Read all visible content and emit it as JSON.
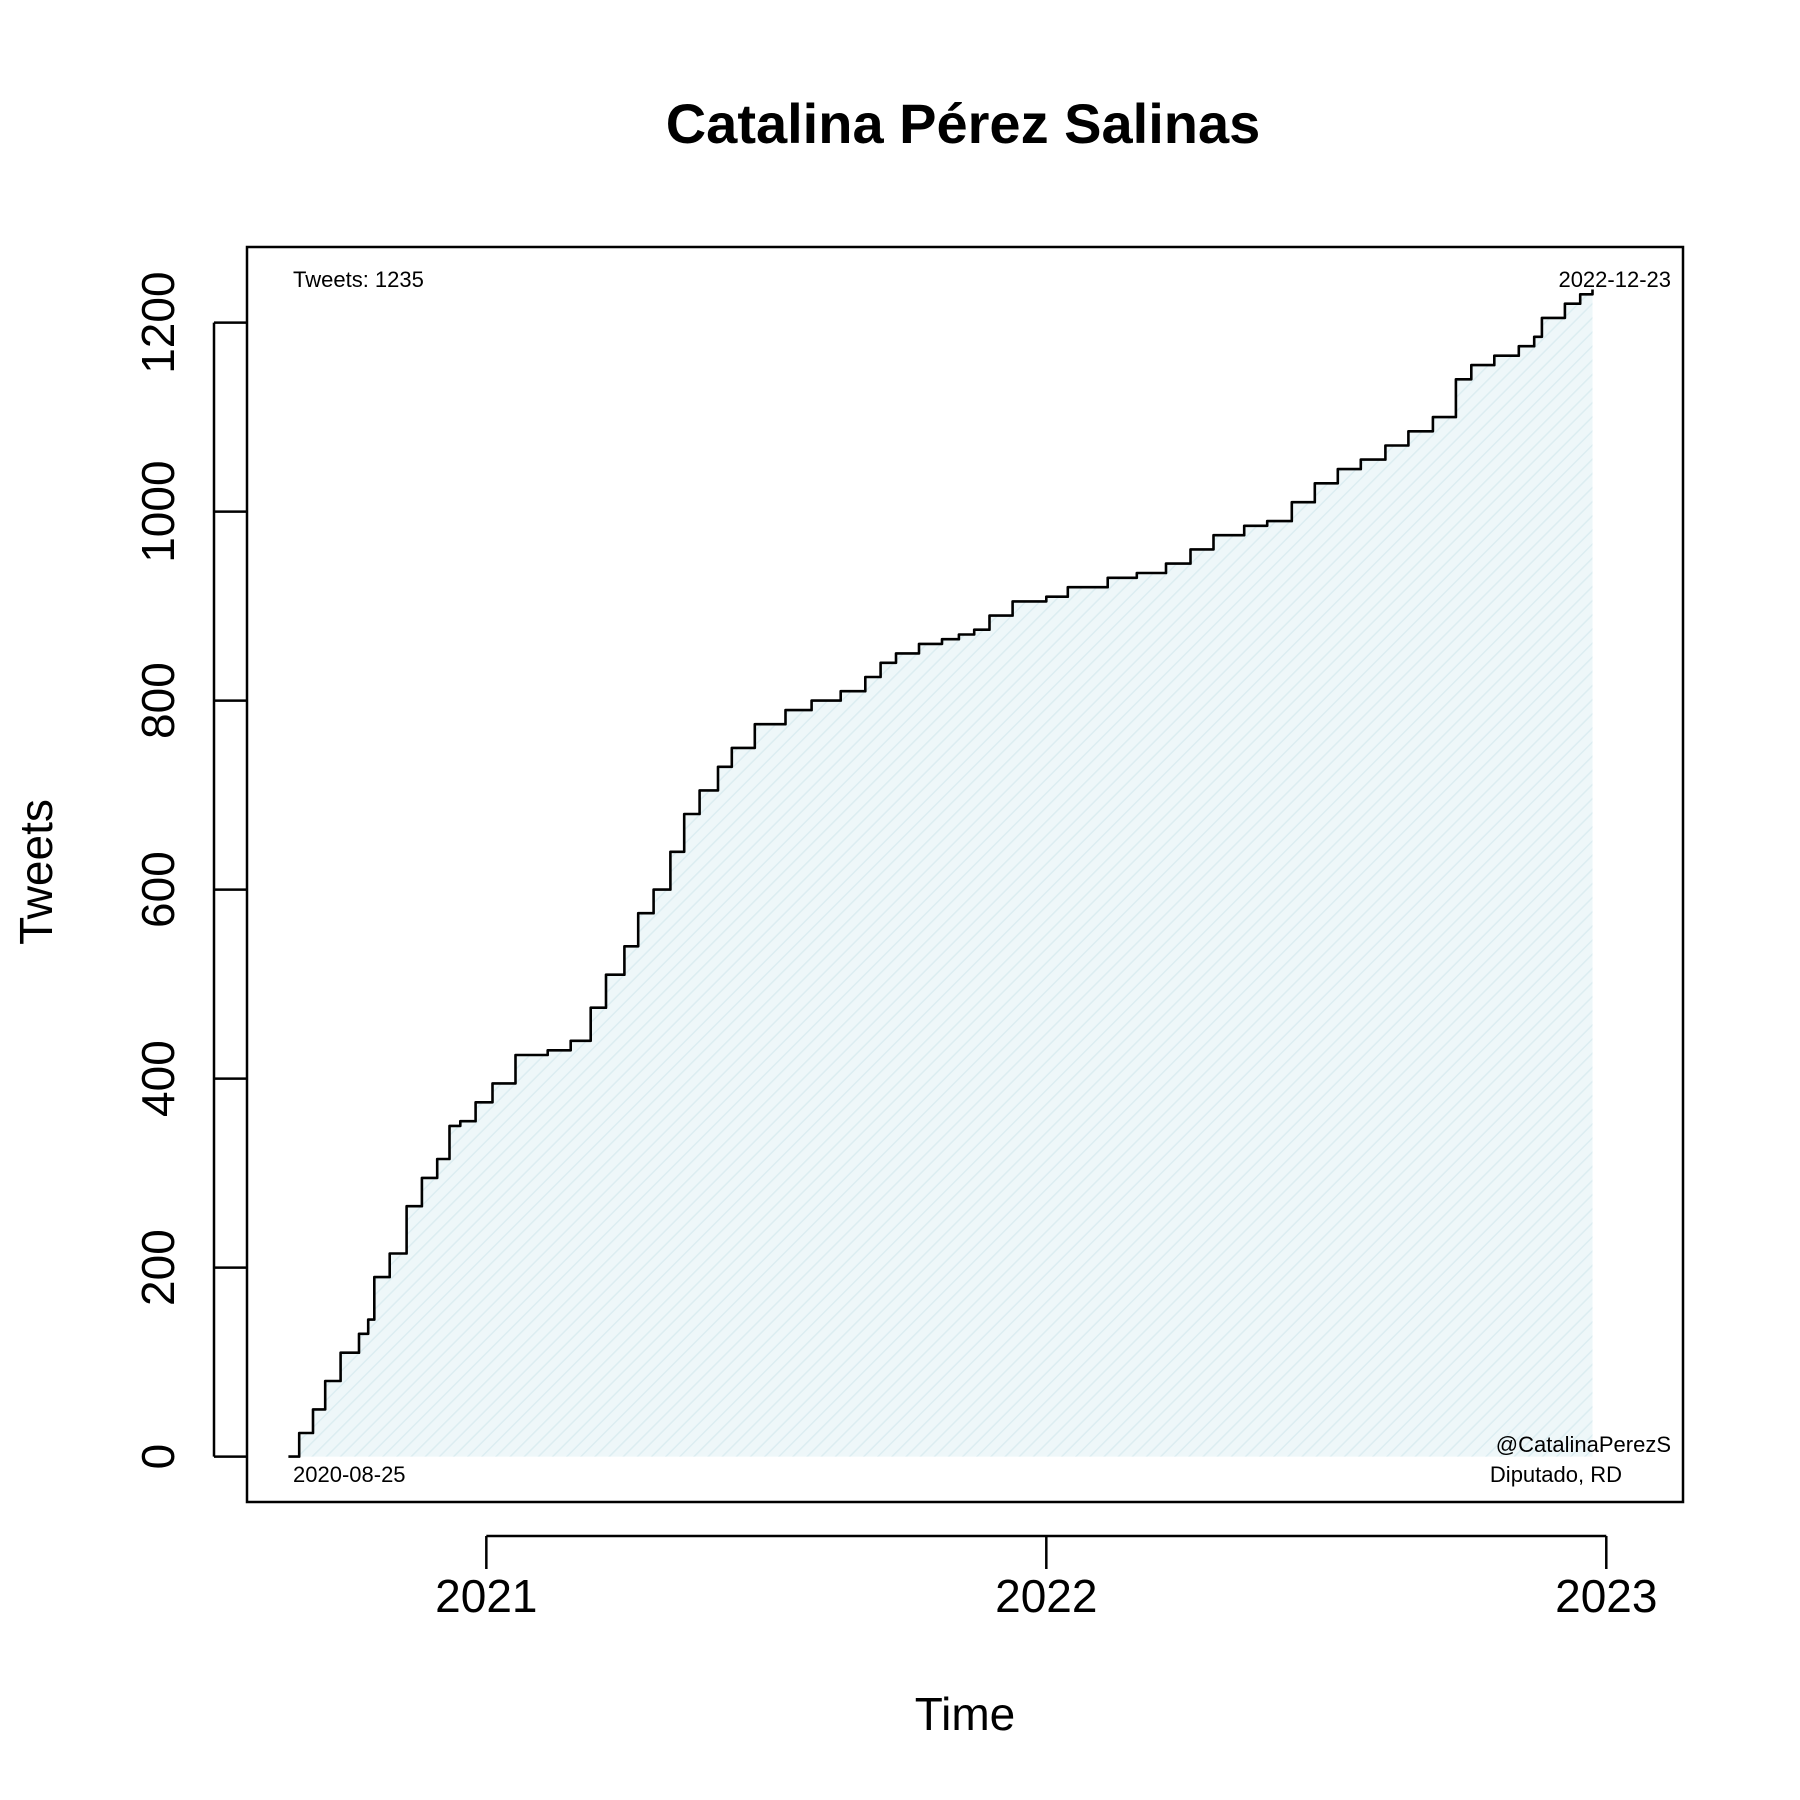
{
  "chart_data": {
    "type": "area",
    "title": "Catalina Pérez Salinas",
    "xlabel": "Time",
    "ylabel": "Tweets",
    "ylim": [
      -48,
      1280
    ],
    "xlim": [
      "2020-07-29",
      "2023-02-20"
    ],
    "y_ticks": [
      "0",
      "200",
      "400",
      "600",
      "800",
      "1000",
      "1200"
    ],
    "x_ticks": [
      {
        "date": "2021-01-01",
        "label": "2021"
      },
      {
        "date": "2022-01-01",
        "label": "2022"
      },
      {
        "date": "2023-01-01",
        "label": "2023"
      }
    ],
    "annotations": {
      "top_left": "Tweets: 1235",
      "top_right": "2022-12-23",
      "bottom_left": "2020-08-25",
      "bottom_right_line1": "@CatalinaPerezS",
      "bottom_right_line2": "Diputado, RD"
    },
    "fill_color": "#e6f3f5",
    "line_color": "#000000",
    "grid": false,
    "series": [
      {
        "points": [
          [
            "2020-08-25",
            0
          ],
          [
            "2020-09-01",
            25
          ],
          [
            "2020-09-10",
            50
          ],
          [
            "2020-09-18",
            80
          ],
          [
            "2020-09-28",
            110
          ],
          [
            "2020-10-10",
            130
          ],
          [
            "2020-10-16",
            145
          ],
          [
            "2020-10-20",
            190
          ],
          [
            "2020-10-30",
            215
          ],
          [
            "2020-11-10",
            265
          ],
          [
            "2020-11-20",
            295
          ],
          [
            "2020-11-30",
            315
          ],
          [
            "2020-12-08",
            350
          ],
          [
            "2020-12-15",
            355
          ],
          [
            "2020-12-25",
            375
          ],
          [
            "2021-01-05",
            395
          ],
          [
            "2021-01-20",
            425
          ],
          [
            "2021-02-10",
            430
          ],
          [
            "2021-02-25",
            440
          ],
          [
            "2021-03-10",
            475
          ],
          [
            "2021-03-20",
            510
          ],
          [
            "2021-04-01",
            540
          ],
          [
            "2021-04-10",
            575
          ],
          [
            "2021-04-20",
            600
          ],
          [
            "2021-05-01",
            640
          ],
          [
            "2021-05-10",
            680
          ],
          [
            "2021-05-20",
            705
          ],
          [
            "2021-06-01",
            730
          ],
          [
            "2021-06-10",
            750
          ],
          [
            "2021-06-25",
            775
          ],
          [
            "2021-07-15",
            790
          ],
          [
            "2021-08-01",
            800
          ],
          [
            "2021-08-20",
            810
          ],
          [
            "2021-09-05",
            825
          ],
          [
            "2021-09-15",
            840
          ],
          [
            "2021-09-25",
            850
          ],
          [
            "2021-10-10",
            860
          ],
          [
            "2021-10-25",
            865
          ],
          [
            "2021-11-05",
            870
          ],
          [
            "2021-11-15",
            875
          ],
          [
            "2021-11-25",
            890
          ],
          [
            "2021-12-10",
            905
          ],
          [
            "2022-01-01",
            910
          ],
          [
            "2022-01-15",
            920
          ],
          [
            "2022-02-10",
            930
          ],
          [
            "2022-03-01",
            935
          ],
          [
            "2022-03-20",
            945
          ],
          [
            "2022-04-05",
            960
          ],
          [
            "2022-04-20",
            975
          ],
          [
            "2022-05-10",
            985
          ],
          [
            "2022-05-25",
            990
          ],
          [
            "2022-06-10",
            1010
          ],
          [
            "2022-06-25",
            1030
          ],
          [
            "2022-07-10",
            1045
          ],
          [
            "2022-07-25",
            1055
          ],
          [
            "2022-08-10",
            1070
          ],
          [
            "2022-08-25",
            1085
          ],
          [
            "2022-09-10",
            1100
          ],
          [
            "2022-09-25",
            1140
          ],
          [
            "2022-10-05",
            1155
          ],
          [
            "2022-10-20",
            1165
          ],
          [
            "2022-11-05",
            1175
          ],
          [
            "2022-11-15",
            1185
          ],
          [
            "2022-11-20",
            1205
          ],
          [
            "2022-12-05",
            1220
          ],
          [
            "2022-12-15",
            1230
          ],
          [
            "2022-12-23",
            1235
          ]
        ]
      }
    ]
  }
}
